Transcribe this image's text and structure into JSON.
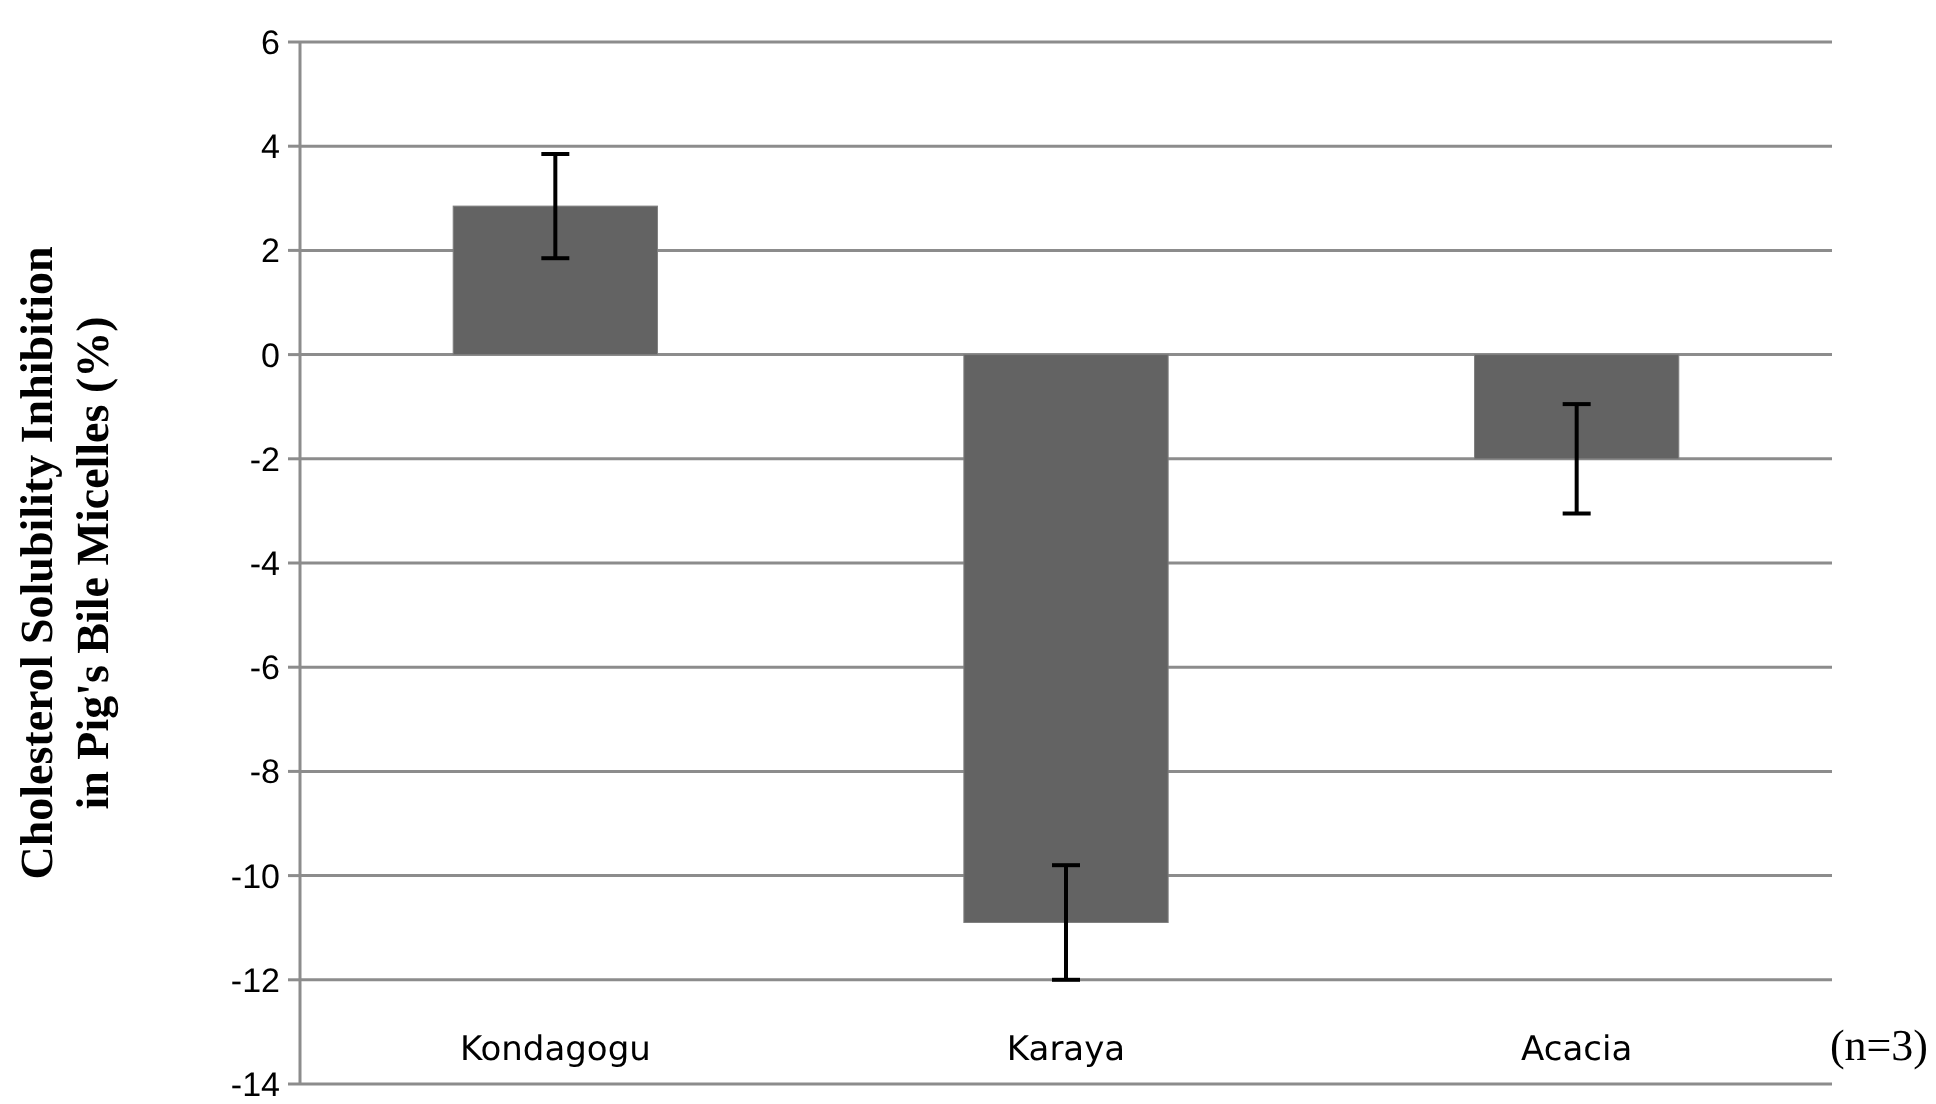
{
  "chart_data": {
    "type": "bar",
    "ylabel": "Cholesterol Solubility Inhibition\nin Pig's Bile Micelles (%)",
    "categories": [
      "Kondagogu",
      "Karaya",
      "Acacia"
    ],
    "values": [
      2.85,
      -10.9,
      -2.0
    ],
    "errors": [
      1.0,
      1.1,
      1.05
    ],
    "color": "#636363",
    "ylim": [
      -14,
      6
    ],
    "yticks": [
      -14,
      -12,
      -10,
      -8,
      -6,
      -4,
      -2,
      0,
      2,
      4,
      6
    ],
    "grid": "y",
    "annotations": [
      "(n=3)"
    ]
  }
}
